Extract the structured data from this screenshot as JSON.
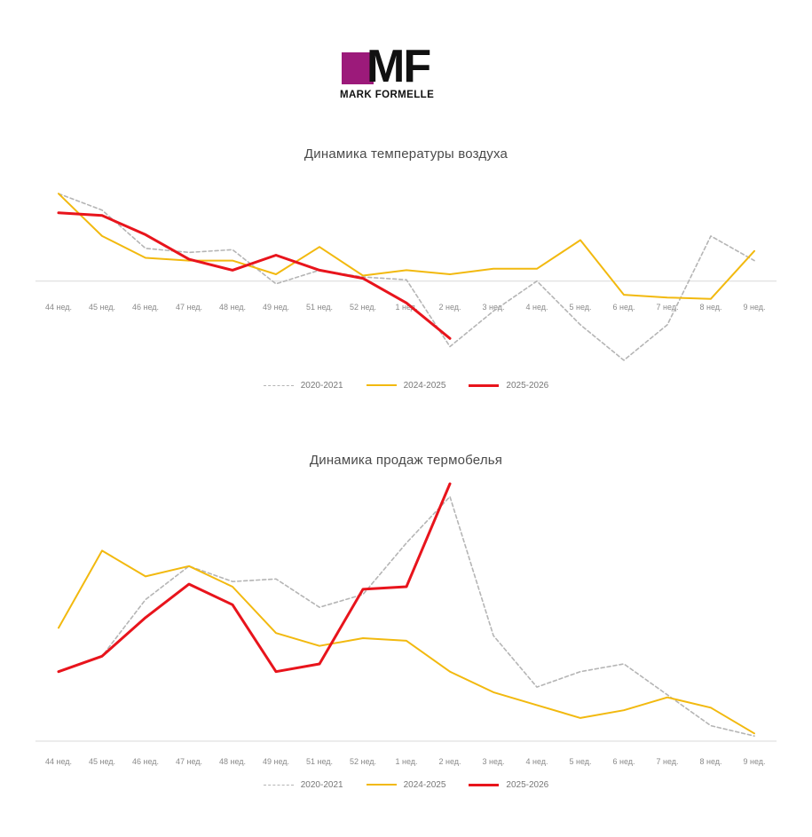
{
  "logo": {
    "letters": "MF",
    "sub": "MARK FORMELLE",
    "color": "#9c1a7a"
  },
  "chart_data": [
    {
      "type": "line",
      "title": "Динамика температуры воздуха",
      "categories": [
        "44 нед.",
        "45 нед.",
        "46 нед.",
        "47 нед.",
        "48 нед.",
        "49 нед.",
        "51 нед.",
        "52 нед.",
        "1 нед.",
        "2 нед.",
        "3 нед.",
        "4 нед.",
        "5 нед.",
        "6 нед.",
        "7 нед.",
        "8 нед.",
        "9 нед."
      ],
      "ylim": [
        -6,
        7
      ],
      "grid": false,
      "legend_position": "bottom",
      "series": [
        {
          "name": "2020-2021",
          "color": "#b5b5b5",
          "style": "dashed",
          "values": [
            6.4,
            5.2,
            2.4,
            2.1,
            2.3,
            -0.2,
            0.8,
            0.3,
            0.1,
            -4.8,
            -2.2,
            0.0,
            -3.2,
            -5.8,
            -3.2,
            3.3,
            1.5
          ]
        },
        {
          "name": "2024-2025",
          "color": "#f2b90f",
          "style": "solid",
          "values": [
            6.4,
            3.3,
            1.7,
            1.5,
            1.5,
            0.5,
            2.5,
            0.4,
            0.8,
            0.5,
            0.9,
            0.9,
            3.0,
            -1.0,
            -1.2,
            -1.3,
            2.2
          ]
        },
        {
          "name": "2025-2026",
          "color": "#e8141c",
          "style": "solid",
          "values": [
            5.0,
            4.8,
            3.4,
            1.6,
            0.8,
            1.9,
            0.8,
            0.2,
            -1.6,
            -4.2,
            null,
            null,
            null,
            null,
            null,
            null,
            null
          ]
        }
      ]
    },
    {
      "type": "line",
      "title": "Динамика продаж термобелья",
      "categories": [
        "44 нед.",
        "45 нед.",
        "46 нед.",
        "47 нед.",
        "48 нед.",
        "49 нед.",
        "51 нед.",
        "52 нед.",
        "1 нед.",
        "2 нед.",
        "3 нед.",
        "4 нед.",
        "5 нед.",
        "6 нед.",
        "7 нед.",
        "8 нед.",
        "9 нед."
      ],
      "ylim": [
        0,
        100
      ],
      "grid": false,
      "legend_position": "bottom",
      "series": [
        {
          "name": "2020-2021",
          "color": "#b5b5b5",
          "style": "dashed",
          "values": [
            27,
            33,
            55,
            68,
            62,
            63,
            52,
            57,
            77,
            95,
            41,
            21,
            27,
            30,
            18,
            6,
            2
          ]
        },
        {
          "name": "2024-2025",
          "color": "#f2b90f",
          "style": "solid",
          "values": [
            44,
            74,
            64,
            68,
            60,
            42,
            37,
            40,
            39,
            27,
            19,
            14,
            9,
            12,
            17,
            13,
            3
          ]
        },
        {
          "name": "2025-2026",
          "color": "#e8141c",
          "style": "solid",
          "values": [
            27,
            33,
            48,
            61,
            53,
            27,
            30,
            59,
            60,
            100,
            null,
            null,
            null,
            null,
            null,
            null,
            null
          ]
        }
      ]
    }
  ]
}
